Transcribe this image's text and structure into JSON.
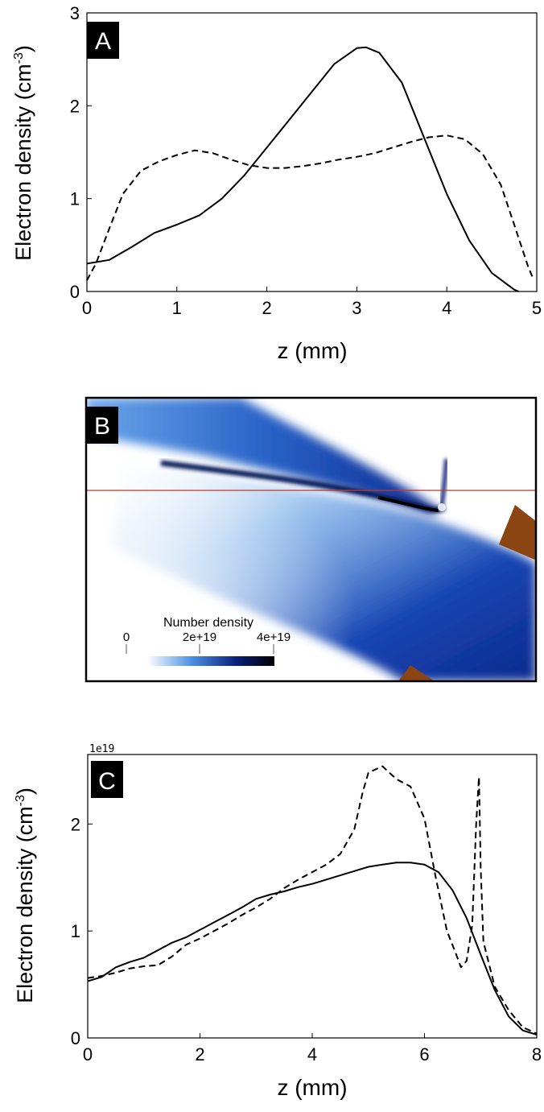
{
  "chart_data": [
    {
      "panel": "A",
      "type": "line",
      "xlabel": "z (mm)",
      "ylabel_main": "Electron density (cm",
      "ylabel_sup": "-3",
      "ylabel_close": ")",
      "xlim": [
        0,
        5
      ],
      "ylim": [
        0,
        3
      ],
      "x_ticks": [
        "0",
        "1",
        "2",
        "3",
        "4",
        "5"
      ],
      "y_ticks": [
        "0",
        "1",
        "2",
        "3"
      ],
      "grid": false,
      "series": [
        {
          "style": "solid",
          "points": [
            [
              0,
              0.3
            ],
            [
              0.25,
              0.34
            ],
            [
              0.5,
              0.48
            ],
            [
              0.75,
              0.63
            ],
            [
              1.0,
              0.72
            ],
            [
              1.25,
              0.82
            ],
            [
              1.5,
              1.0
            ],
            [
              1.75,
              1.25
            ],
            [
              2.0,
              1.55
            ],
            [
              2.25,
              1.85
            ],
            [
              2.5,
              2.15
            ],
            [
              2.75,
              2.45
            ],
            [
              3.0,
              2.62
            ],
            [
              3.1,
              2.63
            ],
            [
              3.25,
              2.57
            ],
            [
              3.5,
              2.25
            ],
            [
              3.75,
              1.65
            ],
            [
              4.0,
              1.05
            ],
            [
              4.25,
              0.55
            ],
            [
              4.5,
              0.2
            ],
            [
              4.75,
              0.02
            ],
            [
              4.8,
              0.0
            ]
          ]
        },
        {
          "style": "dashed",
          "points": [
            [
              0,
              0.12
            ],
            [
              0.1,
              0.3
            ],
            [
              0.25,
              0.68
            ],
            [
              0.4,
              1.05
            ],
            [
              0.6,
              1.3
            ],
            [
              0.8,
              1.4
            ],
            [
              1.0,
              1.47
            ],
            [
              1.2,
              1.52
            ],
            [
              1.4,
              1.49
            ],
            [
              1.6,
              1.42
            ],
            [
              1.8,
              1.36
            ],
            [
              2.0,
              1.33
            ],
            [
              2.2,
              1.33
            ],
            [
              2.4,
              1.35
            ],
            [
              2.6,
              1.38
            ],
            [
              2.8,
              1.42
            ],
            [
              3.0,
              1.45
            ],
            [
              3.2,
              1.49
            ],
            [
              3.4,
              1.55
            ],
            [
              3.6,
              1.61
            ],
            [
              3.8,
              1.66
            ],
            [
              4.0,
              1.68
            ],
            [
              4.2,
              1.64
            ],
            [
              4.4,
              1.48
            ],
            [
              4.6,
              1.15
            ],
            [
              4.75,
              0.72
            ],
            [
              4.9,
              0.28
            ],
            [
              4.95,
              0.16
            ]
          ]
        }
      ]
    },
    {
      "panel": "B",
      "type": "heatmap",
      "colorbar_title": "Number density",
      "colorbar_ticks": [
        "0",
        "2e+19",
        "4e+19"
      ],
      "colors": {
        "low": "#ffffff",
        "mid": "#4a90e2",
        "high": "#0a1f7a",
        "peak": "#000000",
        "nozzle": "#8b4513",
        "line": "#c0392b"
      }
    },
    {
      "panel": "C",
      "type": "line",
      "xlabel": "z (mm)",
      "ylabel_main": "Electron density (cm",
      "ylabel_sup": "-3",
      "ylabel_close": ")",
      "offset_label": "1e19",
      "xlim": [
        0,
        8
      ],
      "ylim": [
        0,
        2.65
      ],
      "x_ticks": [
        "0",
        "2",
        "4",
        "6",
        "8"
      ],
      "y_ticks": [
        "0",
        "1",
        "2"
      ],
      "grid": false,
      "series": [
        {
          "style": "solid",
          "points": [
            [
              0,
              0.53
            ],
            [
              0.25,
              0.57
            ],
            [
              0.5,
              0.66
            ],
            [
              0.75,
              0.71
            ],
            [
              1.0,
              0.75
            ],
            [
              1.25,
              0.82
            ],
            [
              1.5,
              0.89
            ],
            [
              1.75,
              0.94
            ],
            [
              2.0,
              1.01
            ],
            [
              2.25,
              1.08
            ],
            [
              2.5,
              1.15
            ],
            [
              2.75,
              1.22
            ],
            [
              3.0,
              1.3
            ],
            [
              3.25,
              1.34
            ],
            [
              3.5,
              1.37
            ],
            [
              3.75,
              1.41
            ],
            [
              4.0,
              1.44
            ],
            [
              4.25,
              1.48
            ],
            [
              4.5,
              1.52
            ],
            [
              4.75,
              1.56
            ],
            [
              5.0,
              1.6
            ],
            [
              5.25,
              1.62
            ],
            [
              5.5,
              1.64
            ],
            [
              5.75,
              1.64
            ],
            [
              6.0,
              1.62
            ],
            [
              6.25,
              1.55
            ],
            [
              6.5,
              1.38
            ],
            [
              6.75,
              1.12
            ],
            [
              7.0,
              0.78
            ],
            [
              7.25,
              0.45
            ],
            [
              7.5,
              0.2
            ],
            [
              7.75,
              0.07
            ],
            [
              8.0,
              0.03
            ]
          ]
        },
        {
          "style": "dashed",
          "points": [
            [
              0,
              0.56
            ],
            [
              0.25,
              0.58
            ],
            [
              0.5,
              0.61
            ],
            [
              0.75,
              0.65
            ],
            [
              1.0,
              0.67
            ],
            [
              1.25,
              0.68
            ],
            [
              1.5,
              0.76
            ],
            [
              1.75,
              0.87
            ],
            [
              2.0,
              0.93
            ],
            [
              2.25,
              1.0
            ],
            [
              2.5,
              1.07
            ],
            [
              2.75,
              1.15
            ],
            [
              3.0,
              1.22
            ],
            [
              3.25,
              1.3
            ],
            [
              3.5,
              1.4
            ],
            [
              3.75,
              1.48
            ],
            [
              4.0,
              1.55
            ],
            [
              4.25,
              1.62
            ],
            [
              4.5,
              1.72
            ],
            [
              4.75,
              1.95
            ],
            [
              4.9,
              2.3
            ],
            [
              5.0,
              2.48
            ],
            [
              5.25,
              2.54
            ],
            [
              5.5,
              2.42
            ],
            [
              5.75,
              2.35
            ],
            [
              6.0,
              2.05
            ],
            [
              6.2,
              1.5
            ],
            [
              6.4,
              1.0
            ],
            [
              6.55,
              0.8
            ],
            [
              6.65,
              0.66
            ],
            [
              6.75,
              0.72
            ],
            [
              6.85,
              1.05
            ],
            [
              6.92,
              2.0
            ],
            [
              6.97,
              2.44
            ],
            [
              7.0,
              1.6
            ],
            [
              7.05,
              0.9
            ],
            [
              7.25,
              0.48
            ],
            [
              7.5,
              0.26
            ],
            [
              7.75,
              0.1
            ],
            [
              8.0,
              0.04
            ]
          ]
        }
      ]
    }
  ]
}
